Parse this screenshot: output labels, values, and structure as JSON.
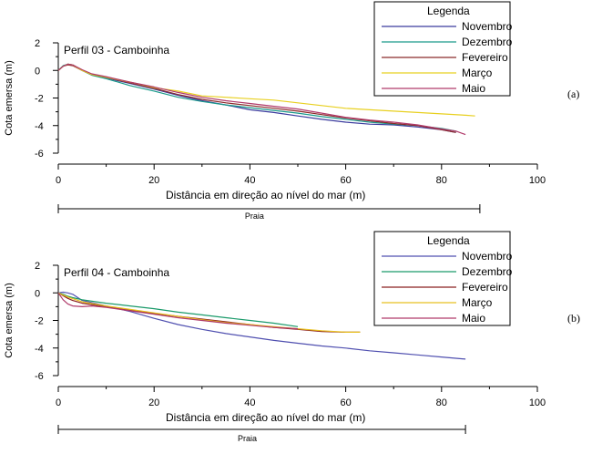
{
  "figure": {
    "panel_a_tag": "(a)",
    "panel_b_tag": "(b)"
  },
  "chart_data": [
    {
      "type": "line",
      "title": "Perfil 03 - Camboinha",
      "xlabel": "Distância em direção ao nível do mar (m)",
      "ylabel": "Cota emersa (m)",
      "xlim": [
        0,
        100
      ],
      "ylim": [
        -6,
        2
      ],
      "x_ticks": [
        "0",
        "20",
        "40",
        "60",
        "80",
        "100"
      ],
      "y_ticks": [
        "2",
        "0",
        "-2",
        "-4",
        "-6"
      ],
      "legend_title": "Legenda",
      "legend_position": "top-right",
      "zone": {
        "label": "Praia",
        "x_range": [
          0,
          88
        ]
      },
      "series": [
        {
          "name": "Novembro",
          "color": "#3b3b9e",
          "points": [
            [
              0,
              0
            ],
            [
              1,
              0.3
            ],
            [
              2,
              0.45
            ],
            [
              3,
              0.4
            ],
            [
              5,
              0
            ],
            [
              7,
              -0.3
            ],
            [
              10,
              -0.55
            ],
            [
              15,
              -0.95
            ],
            [
              20,
              -1.35
            ],
            [
              25,
              -1.8
            ],
            [
              30,
              -2.2
            ],
            [
              35,
              -2.5
            ],
            [
              40,
              -2.85
            ],
            [
              45,
              -3.05
            ],
            [
              50,
              -3.3
            ],
            [
              55,
              -3.55
            ],
            [
              60,
              -3.75
            ],
            [
              65,
              -3.9
            ],
            [
              70,
              -3.95
            ],
            [
              75,
              -4.1
            ],
            [
              80,
              -4.3
            ],
            [
              83,
              -4.5
            ]
          ]
        },
        {
          "name": "Dezembro",
          "color": "#1a9a8a",
          "points": [
            [
              0,
              0
            ],
            [
              1,
              0.35
            ],
            [
              2,
              0.45
            ],
            [
              3,
              0.4
            ],
            [
              5,
              0
            ],
            [
              7,
              -0.35
            ],
            [
              10,
              -0.6
            ],
            [
              15,
              -1.1
            ],
            [
              20,
              -1.5
            ],
            [
              25,
              -1.95
            ],
            [
              30,
              -2.25
            ],
            [
              35,
              -2.5
            ],
            [
              40,
              -2.7
            ],
            [
              45,
              -2.9
            ],
            [
              50,
              -3.1
            ],
            [
              55,
              -3.35
            ],
            [
              60,
              -3.55
            ],
            [
              65,
              -3.75
            ],
            [
              70,
              -3.9
            ],
            [
              75,
              -4.0
            ],
            [
              80,
              -4.2
            ],
            [
              83,
              -4.4
            ]
          ]
        },
        {
          "name": "Fevereiro",
          "color": "#8b2a2a",
          "points": [
            [
              0,
              0
            ],
            [
              1,
              0.3
            ],
            [
              2,
              0.4
            ],
            [
              3,
              0.35
            ],
            [
              5,
              0
            ],
            [
              7,
              -0.3
            ],
            [
              10,
              -0.5
            ],
            [
              15,
              -0.9
            ],
            [
              20,
              -1.3
            ],
            [
              25,
              -1.75
            ],
            [
              30,
              -2.1
            ],
            [
              35,
              -2.35
            ],
            [
              40,
              -2.55
            ],
            [
              45,
              -2.75
            ],
            [
              50,
              -2.95
            ],
            [
              55,
              -3.2
            ],
            [
              60,
              -3.45
            ],
            [
              65,
              -3.65
            ],
            [
              70,
              -3.85
            ],
            [
              75,
              -4.0
            ],
            [
              80,
              -4.3
            ],
            [
              83,
              -4.5
            ]
          ]
        },
        {
          "name": "Março",
          "color": "#e8d020",
          "points": [
            [
              0,
              0
            ],
            [
              1,
              0.3
            ],
            [
              2,
              0.45
            ],
            [
              3,
              0.4
            ],
            [
              5,
              0
            ],
            [
              7,
              -0.3
            ],
            [
              10,
              -0.5
            ],
            [
              15,
              -0.85
            ],
            [
              20,
              -1.25
            ],
            [
              25,
              -1.5
            ],
            [
              30,
              -1.85
            ],
            [
              35,
              -1.95
            ],
            [
              40,
              -2.05
            ],
            [
              45,
              -2.15
            ],
            [
              50,
              -2.35
            ],
            [
              55,
              -2.55
            ],
            [
              60,
              -2.75
            ],
            [
              65,
              -2.85
            ],
            [
              70,
              -2.95
            ],
            [
              75,
              -3.05
            ],
            [
              80,
              -3.15
            ],
            [
              85,
              -3.25
            ],
            [
              87,
              -3.3
            ]
          ]
        },
        {
          "name": "Maio",
          "color": "#b03a6a",
          "points": [
            [
              0,
              0
            ],
            [
              1,
              0.3
            ],
            [
              2,
              0.45
            ],
            [
              3,
              0.4
            ],
            [
              5,
              0.05
            ],
            [
              7,
              -0.25
            ],
            [
              10,
              -0.45
            ],
            [
              15,
              -0.85
            ],
            [
              20,
              -1.2
            ],
            [
              25,
              -1.6
            ],
            [
              30,
              -1.95
            ],
            [
              35,
              -2.2
            ],
            [
              40,
              -2.4
            ],
            [
              45,
              -2.6
            ],
            [
              50,
              -2.8
            ],
            [
              55,
              -3.1
            ],
            [
              60,
              -3.4
            ],
            [
              65,
              -3.6
            ],
            [
              70,
              -3.75
            ],
            [
              75,
              -3.95
            ],
            [
              80,
              -4.25
            ],
            [
              83,
              -4.4
            ],
            [
              85,
              -4.65
            ]
          ]
        }
      ]
    },
    {
      "type": "line",
      "title": "Perfil 04 - Camboinha",
      "xlabel": "Distância em direção ao nível do mar (m)",
      "ylabel": "Cota emersa (m)",
      "xlim": [
        0,
        100
      ],
      "ylim": [
        -6,
        2
      ],
      "x_ticks": [
        "0",
        "20",
        "40",
        "60",
        "80",
        "100"
      ],
      "y_ticks": [
        "2",
        "0",
        "-2",
        "-4",
        "-6"
      ],
      "legend_title": "Legenda",
      "legend_position": "top-right",
      "zone": {
        "label": "Praia",
        "x_range": [
          0,
          85
        ]
      },
      "series": [
        {
          "name": "Novembro",
          "color": "#5050b0",
          "points": [
            [
              0,
              0
            ],
            [
              1,
              0.05
            ],
            [
              2,
              0
            ],
            [
              3,
              -0.1
            ],
            [
              5,
              -0.55
            ],
            [
              10,
              -0.95
            ],
            [
              15,
              -1.35
            ],
            [
              20,
              -1.85
            ],
            [
              25,
              -2.3
            ],
            [
              30,
              -2.65
            ],
            [
              35,
              -2.95
            ],
            [
              40,
              -3.2
            ],
            [
              45,
              -3.45
            ],
            [
              50,
              -3.65
            ],
            [
              55,
              -3.85
            ],
            [
              60,
              -4.0
            ],
            [
              65,
              -4.2
            ],
            [
              70,
              -4.35
            ],
            [
              75,
              -4.5
            ],
            [
              80,
              -4.65
            ],
            [
              85,
              -4.8
            ]
          ]
        },
        {
          "name": "Dezembro",
          "color": "#1a9a6a",
          "points": [
            [
              0,
              0
            ],
            [
              1,
              -0.1
            ],
            [
              2,
              -0.25
            ],
            [
              3,
              -0.35
            ],
            [
              5,
              -0.5
            ],
            [
              10,
              -0.75
            ],
            [
              15,
              -0.95
            ],
            [
              20,
              -1.15
            ],
            [
              25,
              -1.4
            ],
            [
              30,
              -1.6
            ],
            [
              35,
              -1.8
            ],
            [
              40,
              -2.0
            ],
            [
              45,
              -2.2
            ],
            [
              50,
              -2.45
            ]
          ]
        },
        {
          "name": "Fevereiro",
          "color": "#8b2020",
          "points": [
            [
              0,
              0
            ],
            [
              1,
              -0.2
            ],
            [
              2,
              -0.4
            ],
            [
              3,
              -0.55
            ],
            [
              5,
              -0.75
            ],
            [
              10,
              -1.0
            ],
            [
              15,
              -1.25
            ],
            [
              20,
              -1.5
            ],
            [
              25,
              -1.7
            ],
            [
              30,
              -1.9
            ],
            [
              35,
              -2.1
            ],
            [
              40,
              -2.3
            ],
            [
              45,
              -2.5
            ],
            [
              50,
              -2.65
            ],
            [
              55,
              -2.8
            ],
            [
              60,
              -2.85
            ],
            [
              63,
              -2.85
            ]
          ]
        },
        {
          "name": "Março",
          "color": "#e8c020",
          "points": [
            [
              0,
              0
            ],
            [
              2,
              -0.3
            ],
            [
              5,
              -0.65
            ],
            [
              10,
              -0.95
            ],
            [
              15,
              -1.2
            ],
            [
              20,
              -1.45
            ],
            [
              25,
              -1.7
            ],
            [
              30,
              -1.95
            ],
            [
              35,
              -2.15
            ],
            [
              40,
              -2.3
            ],
            [
              45,
              -2.45
            ],
            [
              50,
              -2.6
            ],
            [
              55,
              -2.75
            ],
            [
              60,
              -2.85
            ],
            [
              63,
              -2.85
            ]
          ]
        },
        {
          "name": "Maio",
          "color": "#b03a6a",
          "points": [
            [
              0,
              0
            ],
            [
              1,
              -0.5
            ],
            [
              2,
              -0.8
            ],
            [
              3,
              -0.95
            ],
            [
              5,
              -1.0
            ],
            [
              7,
              -0.95
            ],
            [
              10,
              -1.05
            ],
            [
              15,
              -1.3
            ],
            [
              20,
              -1.55
            ],
            [
              25,
              -1.8
            ],
            [
              30,
              -2.0
            ],
            [
              35,
              -2.2
            ],
            [
              40,
              -2.35
            ],
            [
              45,
              -2.5
            ],
            [
              50,
              -2.6
            ]
          ]
        }
      ]
    }
  ]
}
